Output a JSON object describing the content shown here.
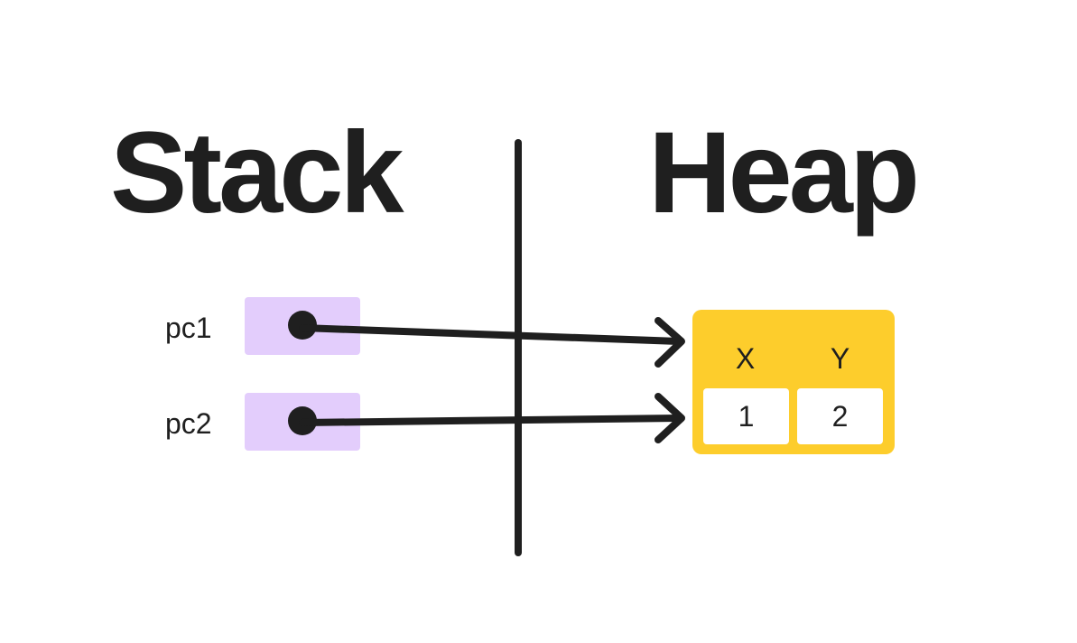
{
  "titles": {
    "stack": "Stack",
    "heap": "Heap"
  },
  "stack": {
    "variables": [
      {
        "name": "pc1"
      },
      {
        "name": "pc2"
      }
    ]
  },
  "heap": {
    "object": {
      "fields": [
        {
          "name": "X",
          "value": "1"
        },
        {
          "name": "Y",
          "value": "2"
        }
      ]
    }
  },
  "colors": {
    "ink": "#1f1f1f",
    "pointer_box": "#e3cdfc",
    "heap_object": "#fdcd2c",
    "cell": "#ffffff"
  }
}
